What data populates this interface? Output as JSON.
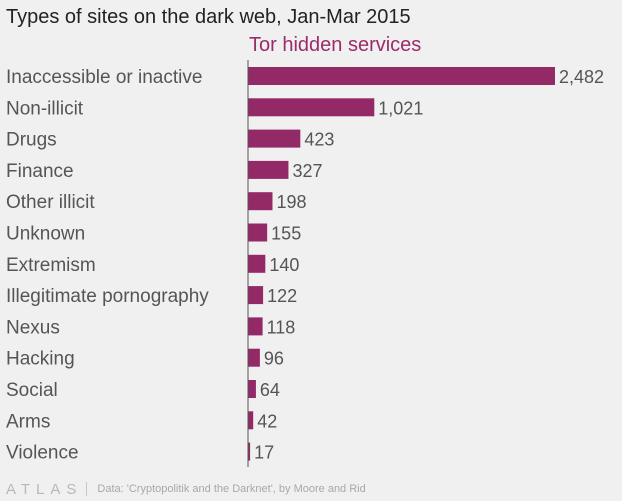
{
  "brand": "ATLAS",
  "source": "Data: 'Cryptopolitik and the Darknet', by Moore and Rid",
  "colors": {
    "bar": "#932967",
    "series_label": "#9b2c6b",
    "axis": "#555555"
  },
  "chart_data": {
    "type": "bar",
    "orientation": "horizontal",
    "title": "Types of sites on the dark web, Jan-Mar 2015",
    "categories": [
      "Inaccessible or inactive",
      "Non-illicit",
      "Drugs",
      "Finance",
      "Other illicit",
      "Unknown",
      "Extremism",
      "Illegitimate pornography",
      "Nexus",
      "Hacking",
      "Social",
      "Arms",
      "Violence"
    ],
    "series": [
      {
        "name": "Tor hidden services",
        "values": [
          2482,
          1021,
          423,
          327,
          198,
          155,
          140,
          122,
          118,
          96,
          64,
          42,
          17
        ],
        "labels": [
          "2,482",
          "1,021",
          "423",
          "327",
          "198",
          "155",
          "140",
          "122",
          "118",
          "96",
          "64",
          "42",
          "17"
        ]
      }
    ],
    "xlim": [
      0,
      2482
    ],
    "grid": false,
    "legend": "top"
  }
}
